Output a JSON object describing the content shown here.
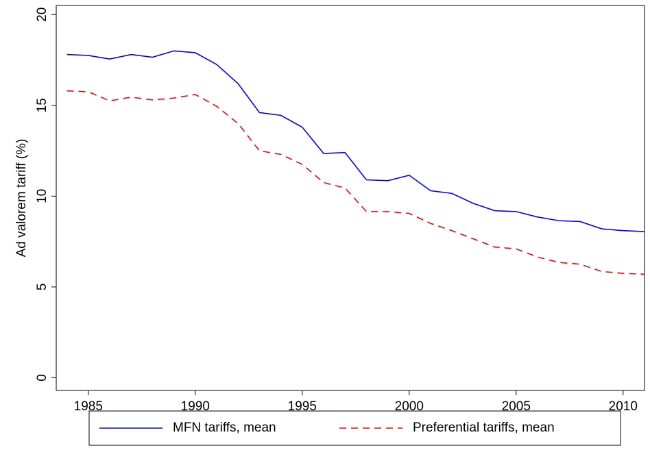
{
  "chart_data": {
    "type": "line",
    "y_label": "Ad valorem tariff (%)",
    "x": [
      1984,
      1985,
      1986,
      1987,
      1988,
      1989,
      1990,
      1991,
      1992,
      1993,
      1994,
      1995,
      1996,
      1997,
      1998,
      1999,
      2000,
      2001,
      2002,
      2003,
      2004,
      2005,
      2006,
      2007,
      2008,
      2009,
      2010,
      2011
    ],
    "series": [
      {
        "name": "MFN tariffs, mean",
        "color": "#0000ff",
        "dash": "solid",
        "values": [
          17.8,
          17.75,
          17.55,
          17.8,
          17.65,
          18.0,
          17.9,
          17.25,
          16.2,
          14.6,
          14.45,
          13.8,
          12.35,
          12.4,
          10.9,
          10.85,
          11.15,
          10.3,
          10.15,
          9.6,
          9.2,
          9.15,
          8.85,
          8.65,
          8.6,
          8.2,
          8.1,
          8.05
        ]
      },
      {
        "name": "Preferential tariffs, mean",
        "color": "#ff0000",
        "dash": "dashed",
        "values": [
          15.8,
          15.75,
          15.25,
          15.45,
          15.3,
          15.4,
          15.6,
          14.95,
          14.0,
          12.5,
          12.3,
          11.75,
          10.75,
          10.45,
          9.15,
          9.15,
          9.05,
          8.5,
          8.1,
          7.65,
          7.2,
          7.1,
          6.65,
          6.35,
          6.25,
          5.85,
          5.75,
          5.7
        ]
      }
    ],
    "xlim": [
      1983.5,
      2011
    ],
    "xticks": [
      1985,
      1990,
      1995,
      2000,
      2005,
      2010
    ],
    "ylim": [
      -0.7,
      20.5
    ],
    "yticks": [
      0,
      5,
      10,
      15,
      20
    ],
    "grid": false,
    "legend": "bottom"
  }
}
